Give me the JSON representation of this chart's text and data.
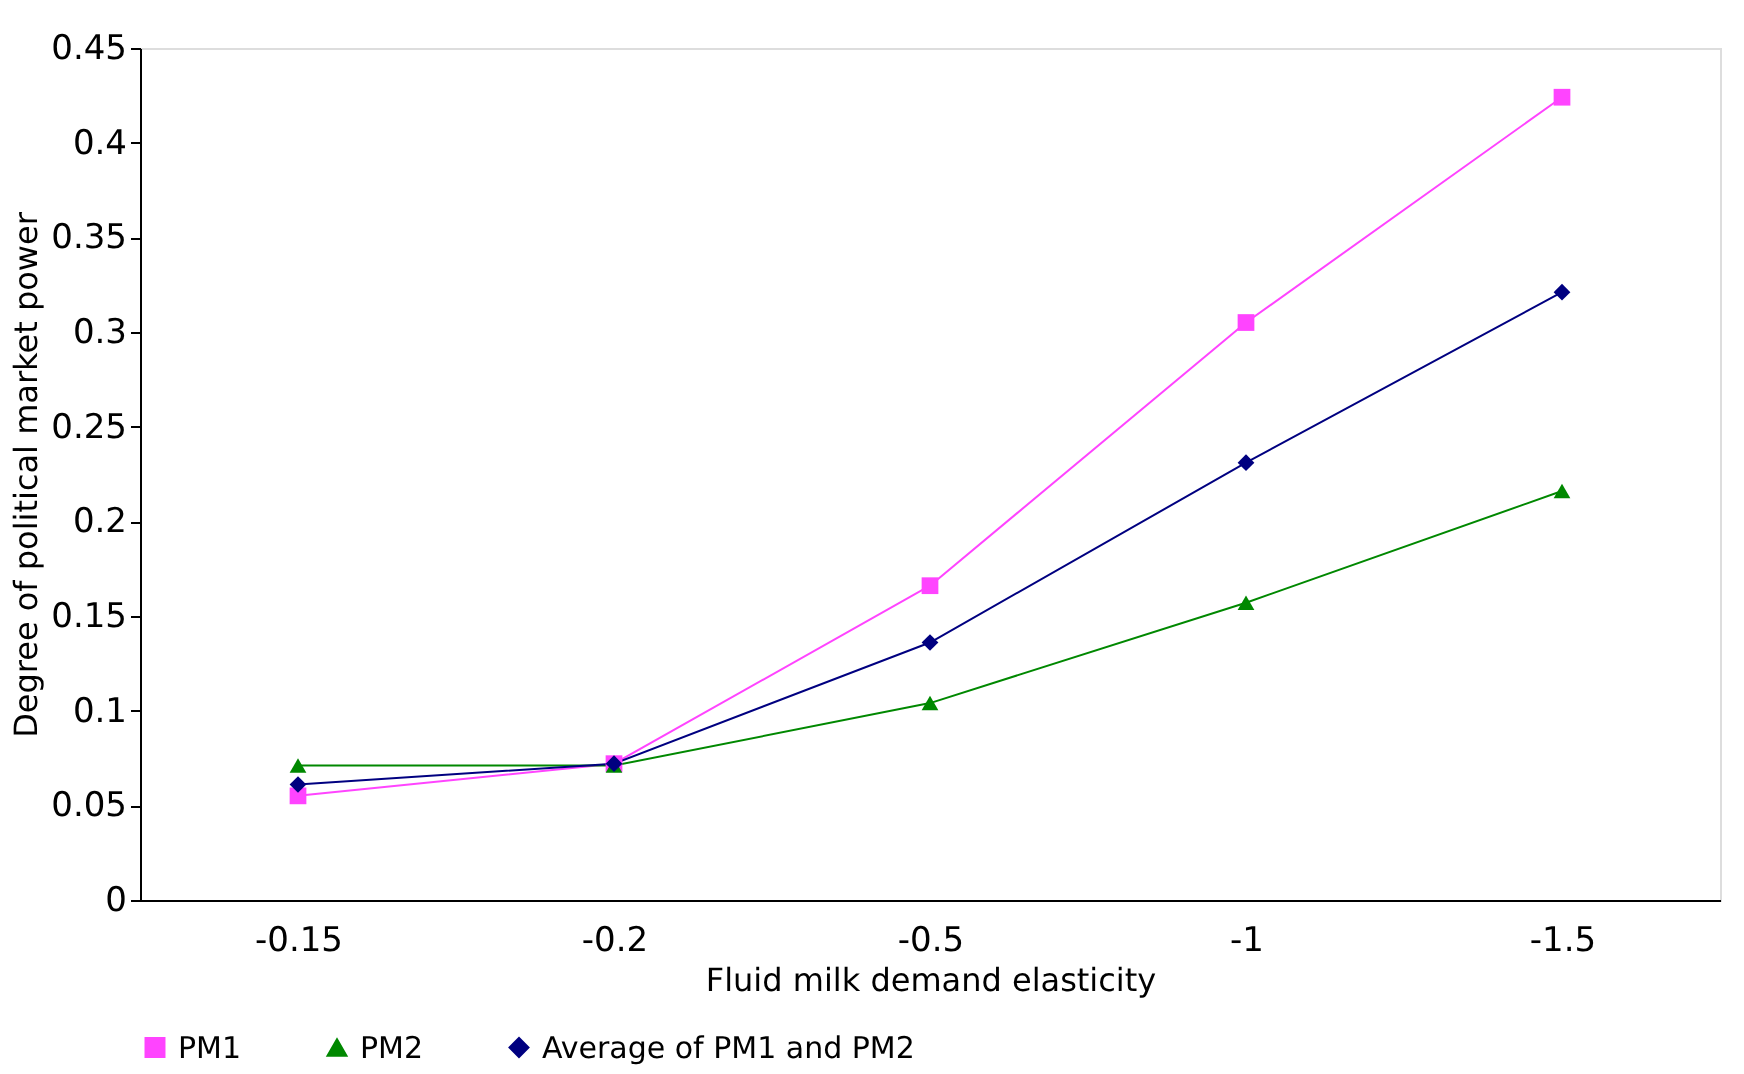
{
  "chart_data": {
    "type": "line",
    "xlabel": "Fluid milk demand elasticity",
    "ylabel": "Degree of political market power",
    "categories": [
      "-0.15",
      "-0.2",
      "-0.5",
      "-1",
      "-1.5"
    ],
    "series": [
      {
        "name": "PM1",
        "color": "#ff44ff",
        "marker": "square",
        "values": [
          0.055,
          0.072,
          0.166,
          0.305,
          0.424
        ]
      },
      {
        "name": "PM2",
        "color": "#008800",
        "marker": "triangle",
        "values": [
          0.071,
          0.071,
          0.104,
          0.157,
          0.216
        ]
      },
      {
        "name": "Average of PM1 and PM2",
        "color": "#000080",
        "marker": "diamond",
        "values": [
          0.061,
          0.072,
          0.136,
          0.231,
          0.321
        ]
      }
    ],
    "ylim": [
      0,
      0.45
    ],
    "yticks": [
      0,
      0.05,
      0.1,
      0.15,
      0.2,
      0.25,
      0.3,
      0.35,
      0.4,
      0.45
    ],
    "grid": false,
    "legend": "bottom"
  }
}
